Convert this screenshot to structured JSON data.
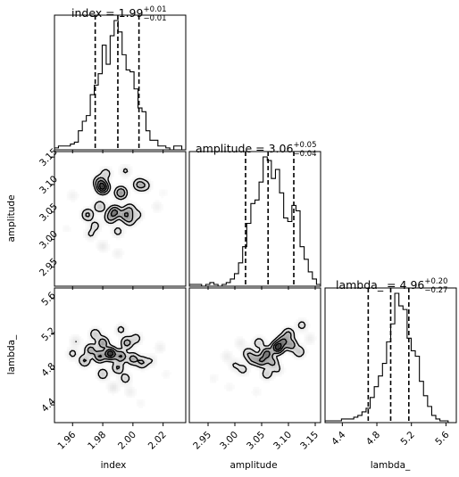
{
  "chart_data": {
    "type": "corner",
    "parameters": [
      "index",
      "amplitude",
      "lambda_"
    ],
    "axis_labels": {
      "index": "index",
      "amplitude": "amplitude",
      "lambda_": "lambda_"
    },
    "titles": [
      {
        "param": "index",
        "prefix": "index = ",
        "value": "1.99",
        "plus": "+0.01",
        "minus": "−0.01"
      },
      {
        "param": "amplitude",
        "prefix": "amplitude = ",
        "value": "3.06",
        "plus": "+0.05",
        "minus": "−0.04"
      },
      {
        "param": "lambda_",
        "prefix": "lambda_ = ",
        "value": "4.96",
        "plus": "+0.20",
        "minus": "−0.27"
      }
    ],
    "ranges": {
      "index": [
        1.948,
        2.035
      ],
      "amplitude": [
        2.915,
        3.16
      ],
      "lambda_": [
        4.2,
        5.72
      ]
    },
    "ticks": {
      "index": [
        1.96,
        1.98,
        2.0,
        2.02
      ],
      "amplitude": [
        2.95,
        3.0,
        3.05,
        3.1,
        3.15
      ],
      "lambda_": [
        4.4,
        4.8,
        5.2,
        5.6
      ]
    },
    "tick_labels": {
      "index": [
        "1.96",
        "1.98",
        "2.00",
        "2.02"
      ],
      "amplitude_x": [
        "2.95",
        "3.00",
        "3.05",
        "3.10",
        "3.15"
      ],
      "amplitude_y": [
        "2.95",
        "3.00",
        "3.05",
        "3.10",
        "3.15"
      ],
      "lambda_x": [
        "4.4",
        "4.8",
        "5.2",
        "5.6"
      ],
      "lambda_y": [
        "4.4",
        "4.8",
        "5.2",
        "5.6"
      ]
    },
    "quantiles": {
      "index": [
        1.975,
        1.99,
        2.004
      ],
      "amplitude": [
        3.02,
        3.062,
        3.11
      ],
      "lambda_": [
        4.7,
        4.96,
        5.17
      ]
    },
    "histograms": {
      "index": {
        "edges_range": [
          1.948,
          2.035
        ],
        "counts": [
          1,
          2,
          2,
          2,
          3,
          4,
          10,
          15,
          18,
          29,
          34,
          40,
          55,
          45,
          60,
          68,
          62,
          50,
          42,
          41,
          32,
          22,
          20,
          10,
          5,
          5,
          2,
          2,
          1,
          0,
          2,
          2,
          0
        ]
      },
      "amplitude": {
        "edges_range": [
          2.915,
          3.16
        ],
        "counts": [
          1,
          1,
          1,
          0,
          1,
          2,
          1,
          0,
          1,
          2,
          4,
          7,
          13,
          22,
          35,
          46,
          48,
          58,
          72,
          70,
          60,
          65,
          52,
          38,
          36,
          45,
          42,
          22,
          15,
          8,
          4,
          1
        ]
      },
      "lambda_": {
        "edges_range": [
          4.2,
          5.72
        ],
        "counts": [
          1,
          1,
          1,
          1,
          2,
          2,
          2,
          3,
          4,
          6,
          8,
          14,
          20,
          26,
          33,
          45,
          55,
          72,
          65,
          63,
          47,
          40,
          37,
          23,
          15,
          9,
          4,
          2,
          1,
          1,
          0,
          0
        ]
      }
    },
    "density_2d": {
      "amplitude_vs_index": {
        "samples": [
          [
            1.98,
            3.095,
            25
          ],
          [
            1.978,
            3.105,
            12
          ],
          [
            1.992,
            3.085,
            15
          ],
          [
            1.988,
            3.05,
            18
          ],
          [
            1.995,
            3.045,
            14
          ],
          [
            1.985,
            3.04,
            10
          ],
          [
            1.97,
            3.045,
            10
          ],
          [
            1.978,
            3.06,
            8
          ],
          [
            1.998,
            3.055,
            8
          ],
          [
            2.004,
            3.1,
            10
          ],
          [
            2.008,
            3.098,
            6
          ],
          [
            1.998,
            3.035,
            8
          ],
          [
            1.99,
            3.015,
            5
          ],
          [
            1.975,
            3.025,
            5
          ],
          [
            1.972,
            3.01,
            4
          ],
          [
            1.98,
            2.988,
            3
          ],
          [
            1.99,
            2.975,
            2
          ],
          [
            1.982,
            3.12,
            6
          ],
          [
            1.995,
            3.125,
            4
          ],
          [
            2.003,
            3.045,
            5
          ],
          [
            2.016,
            3.06,
            2
          ],
          [
            1.96,
            3.08,
            2
          ],
          [
            2.02,
            3.085,
            1
          ],
          [
            1.956,
            3.02,
            1
          ]
        ]
      },
      "lambda_vs_index": {
        "samples": [
          [
            1.985,
            4.98,
            25
          ],
          [
            1.978,
            4.95,
            14
          ],
          [
            1.992,
            4.95,
            14
          ],
          [
            1.972,
            5.02,
            10
          ],
          [
            1.98,
            5.1,
            12
          ],
          [
            1.996,
            5.1,
            10
          ],
          [
            2.0,
            4.92,
            10
          ],
          [
            2.006,
            4.88,
            8
          ],
          [
            1.968,
            4.9,
            8
          ],
          [
            1.99,
            4.82,
            8
          ],
          [
            1.98,
            4.75,
            6
          ],
          [
            1.995,
            4.7,
            5
          ],
          [
            1.975,
            5.2,
            6
          ],
          [
            1.992,
            5.25,
            4
          ],
          [
            2.002,
            5.15,
            5
          ],
          [
            1.96,
            4.98,
            4
          ],
          [
            1.962,
            5.12,
            3
          ],
          [
            1.987,
            4.6,
            3
          ],
          [
            1.998,
            4.55,
            2
          ],
          [
            2.012,
            4.9,
            3
          ],
          [
            2.018,
            5.05,
            2
          ],
          [
            2.022,
            4.75,
            1
          ],
          [
            2.005,
            4.42,
            1
          ]
        ]
      },
      "lambda_vs_amplitude": {
        "samples": [
          [
            3.08,
            5.05,
            22
          ],
          [
            3.06,
            4.98,
            15
          ],
          [
            3.09,
            5.12,
            12
          ],
          [
            3.05,
            4.9,
            12
          ],
          [
            3.07,
            4.88,
            8
          ],
          [
            3.105,
            5.08,
            10
          ],
          [
            3.035,
            4.92,
            8
          ],
          [
            3.025,
            4.98,
            6
          ],
          [
            3.1,
            5.2,
            8
          ],
          [
            3.12,
            5.0,
            6
          ],
          [
            3.045,
            5.1,
            5
          ],
          [
            3.06,
            4.75,
            5
          ],
          [
            3.015,
            4.8,
            4
          ],
          [
            3.0,
            4.85,
            3
          ],
          [
            3.08,
            4.8,
            3
          ],
          [
            3.125,
            5.3,
            4
          ],
          [
            3.01,
            5.1,
            2
          ],
          [
            2.985,
            4.95,
            2
          ],
          [
            2.99,
            4.6,
            1
          ],
          [
            3.04,
            4.55,
            1
          ],
          [
            2.96,
            4.7,
            1
          ],
          [
            3.14,
            5.15,
            2
          ]
        ]
      }
    },
    "grid": false,
    "legend": "none"
  }
}
